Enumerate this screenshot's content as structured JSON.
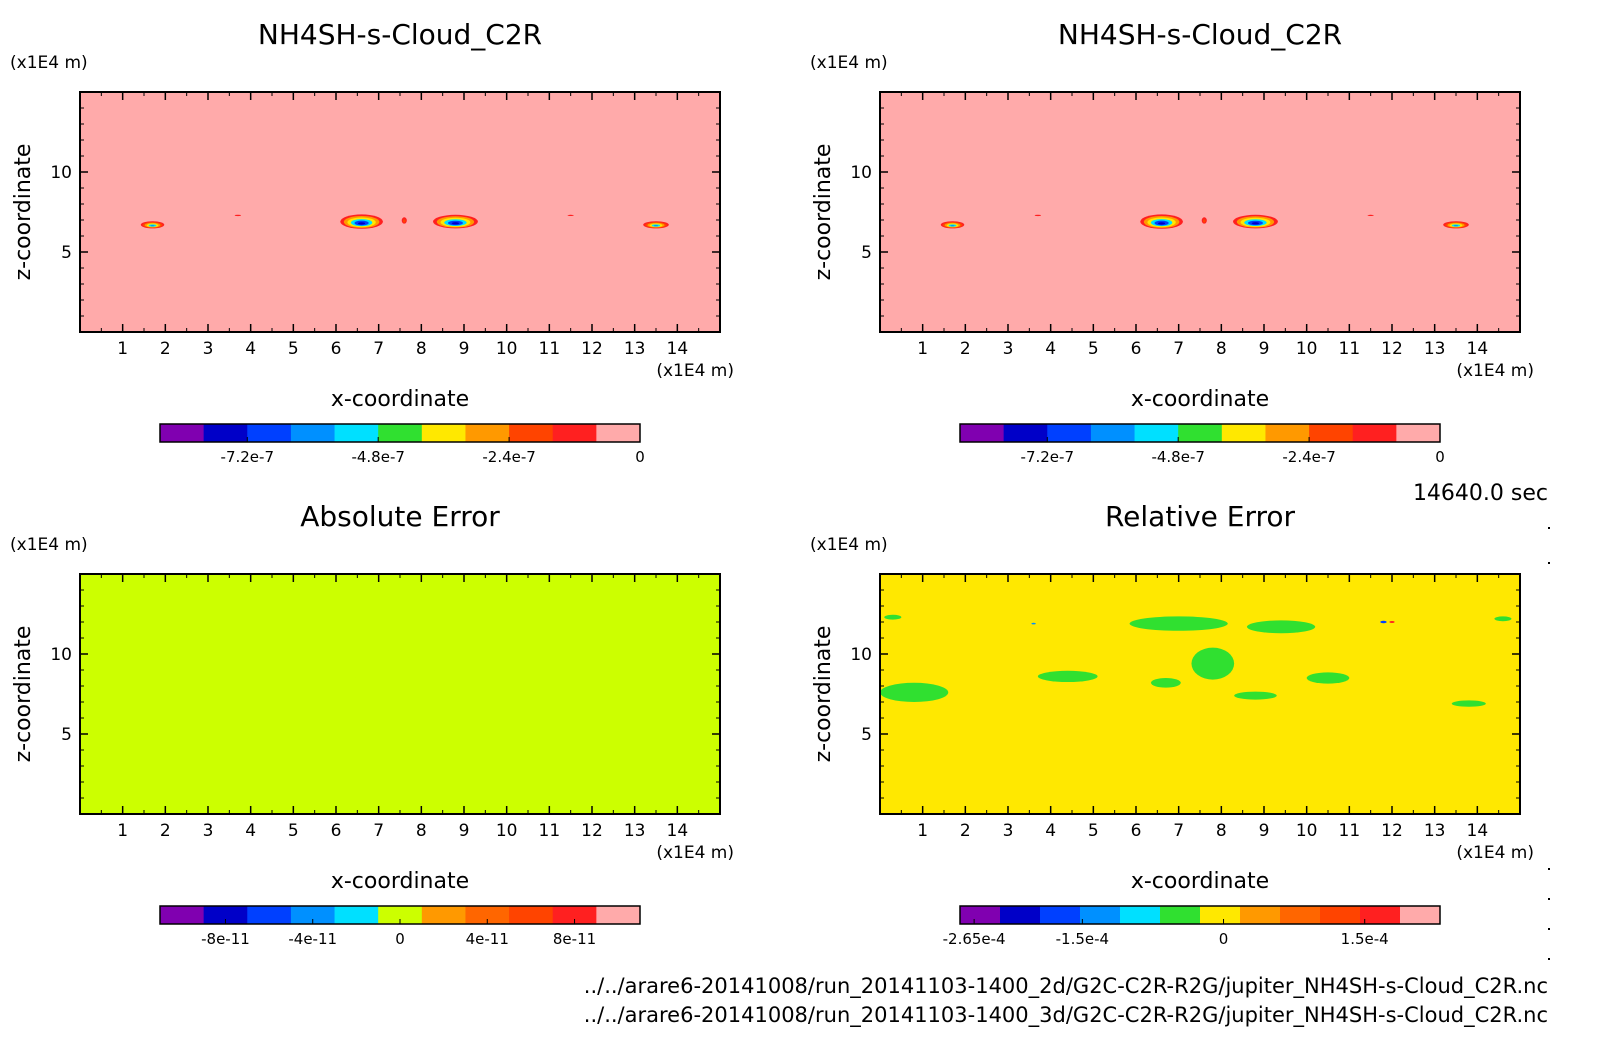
{
  "colors": {
    "background": "#ffffff",
    "frame": "#000000"
  },
  "time_label": "14640.0 sec",
  "file_paths": [
    "../../arare6-20141008/run_20141103-1400_2d/G2C-C2R-R2G/jupiter_NH4SH-s-Cloud_C2R.nc",
    "../../arare6-20141008/run_20141103-1400_3d/G2C-C2R-R2G/jupiter_NH4SH-s-Cloud_C2R.nc"
  ],
  "chart_data": [
    {
      "type": "heatmap",
      "title": "NH4SH-s-Cloud_C2R",
      "xlabel": "x-coordinate",
      "ylabel": "z-coordinate",
      "x_unit": "(x1E4 m)",
      "y_unit": "(x1E4 m)",
      "xlim": [
        0,
        15
      ],
      "ylim": [
        0,
        15
      ],
      "x_ticks": [
        1,
        2,
        3,
        4,
        5,
        6,
        7,
        8,
        9,
        10,
        11,
        12,
        13,
        14
      ],
      "y_ticks": [
        5,
        10
      ],
      "background_color": "#ffaaaa",
      "features": [
        {
          "x": 1.7,
          "z": 6.7,
          "w": 0.55,
          "h": 0.45,
          "min": -6e-07
        },
        {
          "x": 6.6,
          "z": 6.9,
          "w": 1.0,
          "h": 0.9,
          "min": -8e-07
        },
        {
          "x": 8.8,
          "z": 6.9,
          "w": 1.05,
          "h": 0.85,
          "min": -8e-07
        },
        {
          "x": 13.5,
          "z": 6.7,
          "w": 0.6,
          "h": 0.45,
          "min": -6e-07
        },
        {
          "x": 7.6,
          "z": 7.0,
          "w": 0.18,
          "h": 0.6,
          "min": -2e-07
        },
        {
          "x": 3.7,
          "z": 7.3,
          "w": 0.3,
          "h": 0.18,
          "min": -1.5e-07
        },
        {
          "x": 11.5,
          "z": 7.3,
          "w": 0.3,
          "h": 0.15,
          "min": -1.5e-07
        }
      ],
      "colorbar": {
        "colors": [
          "#8000b0",
          "#0000c8",
          "#0040ff",
          "#0090ff",
          "#00e0ff",
          "#30e030",
          "#ffe800",
          "#ff9900",
          "#ff4400",
          "#ff2020",
          "#ffaaaa"
        ],
        "ticks": [
          {
            "value": -7.2e-07,
            "label": "-7.2e-7"
          },
          {
            "value": -4.8e-07,
            "label": "-4.8e-7"
          },
          {
            "value": -2.4e-07,
            "label": "-2.4e-7"
          },
          {
            "value": 0,
            "label": "0"
          }
        ],
        "range": [
          -8.8e-07,
          0
        ]
      }
    },
    {
      "type": "heatmap",
      "title": "NH4SH-s-Cloud_C2R",
      "xlabel": "x-coordinate",
      "ylabel": "z-coordinate",
      "x_unit": "(x1E4 m)",
      "y_unit": "(x1E4 m)",
      "xlim": [
        0,
        15
      ],
      "ylim": [
        0,
        15
      ],
      "x_ticks": [
        1,
        2,
        3,
        4,
        5,
        6,
        7,
        8,
        9,
        10,
        11,
        12,
        13,
        14
      ],
      "y_ticks": [
        5,
        10
      ],
      "background_color": "#ffaaaa",
      "features": [
        {
          "x": 1.7,
          "z": 6.7,
          "w": 0.55,
          "h": 0.45,
          "min": -6e-07
        },
        {
          "x": 6.6,
          "z": 6.9,
          "w": 1.0,
          "h": 0.9,
          "min": -8e-07
        },
        {
          "x": 8.8,
          "z": 6.9,
          "w": 1.05,
          "h": 0.85,
          "min": -8e-07
        },
        {
          "x": 13.5,
          "z": 6.7,
          "w": 0.6,
          "h": 0.45,
          "min": -6e-07
        },
        {
          "x": 7.6,
          "z": 7.0,
          "w": 0.18,
          "h": 0.6,
          "min": -2e-07
        },
        {
          "x": 3.7,
          "z": 7.3,
          "w": 0.3,
          "h": 0.18,
          "min": -1.5e-07
        },
        {
          "x": 11.5,
          "z": 7.3,
          "w": 0.3,
          "h": 0.15,
          "min": -1.5e-07
        }
      ],
      "colorbar": {
        "colors": [
          "#8000b0",
          "#0000c8",
          "#0040ff",
          "#0090ff",
          "#00e0ff",
          "#30e030",
          "#ffe800",
          "#ff9900",
          "#ff4400",
          "#ff2020",
          "#ffaaaa"
        ],
        "ticks": [
          {
            "value": -7.2e-07,
            "label": "-7.2e-7"
          },
          {
            "value": -4.8e-07,
            "label": "-4.8e-7"
          },
          {
            "value": -2.4e-07,
            "label": "-2.4e-7"
          },
          {
            "value": 0,
            "label": "0"
          }
        ],
        "range": [
          -8.8e-07,
          0
        ]
      }
    },
    {
      "type": "heatmap",
      "title": "Absolute Error",
      "xlabel": "x-coordinate",
      "ylabel": "z-coordinate",
      "x_unit": "(x1E4 m)",
      "y_unit": "(x1E4 m)",
      "xlim": [
        0,
        15
      ],
      "ylim": [
        0,
        15
      ],
      "x_ticks": [
        1,
        2,
        3,
        4,
        5,
        6,
        7,
        8,
        9,
        10,
        11,
        12,
        13,
        14
      ],
      "y_ticks": [
        5,
        10
      ],
      "background_color": "#ccff00",
      "features": [
        {
          "x": 5.8,
          "z": 11.8,
          "w": 2.6,
          "h": 1.0,
          "value": -1e-11
        },
        {
          "x": 9.6,
          "z": 11.8,
          "w": 2.0,
          "h": 0.9,
          "value": -1e-11
        },
        {
          "x": 7.7,
          "z": 9.4,
          "w": 1.3,
          "h": 2.4,
          "value": -1e-11
        },
        {
          "x": 5.4,
          "z": 8.9,
          "w": 1.2,
          "h": 0.6,
          "value": -1e-11
        },
        {
          "x": 8.7,
          "z": 8.7,
          "w": 1.1,
          "h": 0.7,
          "value": -1e-11
        },
        {
          "x": 6.7,
          "z": 8.2,
          "w": 0.9,
          "h": 0.8,
          "value": -1e-11
        },
        {
          "x": 11.3,
          "z": 8.5,
          "w": 0.8,
          "h": 0.6,
          "value": -1e-11
        },
        {
          "x": 12.8,
          "z": 8.1,
          "w": 1.1,
          "h": 0.5,
          "value": -1e-11
        },
        {
          "x": 14.5,
          "z": 7.5,
          "w": 0.6,
          "h": 0.6,
          "value": -1e-11
        },
        {
          "x": 1.6,
          "z": 6.9,
          "w": 0.6,
          "h": 0.5,
          "value": -1e-11
        },
        {
          "x": 3.2,
          "z": 7.2,
          "w": 0.8,
          "h": 0.3,
          "value": -1e-11
        },
        {
          "x": 13.6,
          "z": 6.9,
          "w": 0.9,
          "h": 0.4,
          "value": -1e-11
        },
        {
          "x": 0.4,
          "z": 12.3,
          "w": 0.5,
          "h": 0.3,
          "value": -1e-11
        },
        {
          "x": 0.3,
          "z": 10.2,
          "w": 0.4,
          "h": 0.4,
          "value": -1e-11
        },
        {
          "x": 14.7,
          "z": 12.1,
          "w": 0.3,
          "h": 0.3,
          "value": -1e-11
        },
        {
          "x": 12.8,
          "z": 12.4,
          "w": 0.4,
          "h": 0.25,
          "value": -1e-11
        },
        {
          "x": 2.3,
          "z": 12.3,
          "w": 0.4,
          "h": 0.2,
          "value": -1e-11
        },
        {
          "x": 7.8,
          "z": 7.4,
          "w": 1.2,
          "h": 0.6,
          "value": -1e-11
        }
      ],
      "colorbar": {
        "colors": [
          "#8000b0",
          "#0000c8",
          "#0040ff",
          "#0090ff",
          "#00e0ff",
          "#ccff00",
          "#ff9900",
          "#ff6600",
          "#ff4400",
          "#ff2020",
          "#ffaaaa"
        ],
        "ticks": [
          {
            "value": -8e-11,
            "label": "-8e-11"
          },
          {
            "value": -4e-11,
            "label": "-4e-11"
          },
          {
            "value": 0,
            "label": "0"
          },
          {
            "value": 4e-11,
            "label": "4e-11"
          },
          {
            "value": 8e-11,
            "label": "8e-11"
          }
        ],
        "range": [
          -1.1e-10,
          1.1e-10
        ]
      }
    },
    {
      "type": "heatmap",
      "title": "Relative Error",
      "xlabel": "x-coordinate",
      "ylabel": "z-coordinate",
      "x_unit": "(x1E4 m)",
      "y_unit": "(x1E4 m)",
      "xlim": [
        0,
        15
      ],
      "ylim": [
        0,
        15
      ],
      "x_ticks": [
        1,
        2,
        3,
        4,
        5,
        6,
        7,
        8,
        9,
        10,
        11,
        12,
        13,
        14
      ],
      "y_ticks": [
        5,
        10
      ],
      "background_color": "#ffe800",
      "features": [
        {
          "x": 7.0,
          "z": 11.9,
          "w": 2.3,
          "h": 0.9,
          "value": -3e-05
        },
        {
          "x": 9.4,
          "z": 11.7,
          "w": 1.6,
          "h": 0.8,
          "value": -3e-05
        },
        {
          "x": 7.8,
          "z": 9.4,
          "w": 1.0,
          "h": 2.0,
          "value": -3e-05
        },
        {
          "x": 4.4,
          "z": 8.6,
          "w": 1.4,
          "h": 0.7,
          "value": -3e-05
        },
        {
          "x": 10.5,
          "z": 8.5,
          "w": 1.0,
          "h": 0.7,
          "value": -3e-05
        },
        {
          "x": 0.8,
          "z": 7.6,
          "w": 1.6,
          "h": 1.2,
          "value": -3e-05
        },
        {
          "x": 6.7,
          "z": 8.2,
          "w": 0.7,
          "h": 0.6,
          "value": -3e-05
        },
        {
          "x": 13.8,
          "z": 6.9,
          "w": 0.8,
          "h": 0.4,
          "value": -3e-05
        },
        {
          "x": 8.8,
          "z": 7.4,
          "w": 1.0,
          "h": 0.5,
          "value": -3e-05
        },
        {
          "x": 0.3,
          "z": 12.3,
          "w": 0.4,
          "h": 0.3,
          "value": -3e-05
        },
        {
          "x": 14.6,
          "z": 12.2,
          "w": 0.4,
          "h": 0.3,
          "value": -3e-05
        },
        {
          "x": 11.8,
          "z": 12.0,
          "w": 0.15,
          "h": 0.15,
          "value": -0.00017
        },
        {
          "x": 12.0,
          "z": 12.0,
          "w": 0.12,
          "h": 0.12,
          "value": 0.00015
        },
        {
          "x": 3.6,
          "z": 11.9,
          "w": 0.1,
          "h": 0.1,
          "value": -0.00012
        }
      ],
      "colorbar": {
        "colors": [
          "#8000b0",
          "#0000c8",
          "#0040ff",
          "#0090ff",
          "#00e0ff",
          "#30e030",
          "#ffe800",
          "#ff9900",
          "#ff6600",
          "#ff4400",
          "#ff2020",
          "#ffaaaa"
        ],
        "ticks": [
          {
            "value": -0.000265,
            "label": "-2.65e-4"
          },
          {
            "value": -0.00015,
            "label": "-1.5e-4"
          },
          {
            "value": 0,
            "label": "0"
          },
          {
            "value": 0.00015,
            "label": "1.5e-4"
          }
        ],
        "range": [
          -0.00028,
          0.00023
        ]
      }
    }
  ]
}
